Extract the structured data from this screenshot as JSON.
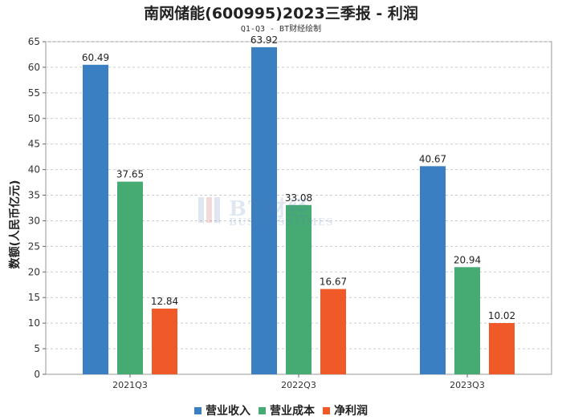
{
  "chart_data": {
    "type": "bar",
    "title": "南网储能(600995)2023三季报 - 利润",
    "subtitle": "Q1-Q3 - BT财经绘制",
    "xlabel": "",
    "ylabel": "数额(人民币亿元)",
    "ylim": [
      0,
      65
    ],
    "yticks": [
      0,
      5,
      10,
      15,
      20,
      25,
      30,
      35,
      40,
      45,
      50,
      55,
      60,
      65
    ],
    "grid": true,
    "categories": [
      "2021Q3",
      "2022Q3",
      "2023Q3"
    ],
    "series": [
      {
        "name": "营业收入",
        "color": "#3a7fc1",
        "values": [
          60.49,
          63.92,
          40.67
        ]
      },
      {
        "name": "营业成本",
        "color": "#46ab73",
        "values": [
          37.65,
          33.08,
          20.94
        ]
      },
      {
        "name": "净利润",
        "color": "#f05a28",
        "values": [
          12.84,
          16.67,
          10.02
        ]
      }
    ],
    "value_labels": [
      [
        "60.49",
        "63.92",
        "40.67"
      ],
      [
        "37.65",
        "33.08",
        "20.94"
      ],
      [
        "12.84",
        "16.67",
        "10.02"
      ]
    ],
    "legend_position": "bottom"
  },
  "watermark": {
    "text": "BT财经",
    "subtext": "BUSINESSTIMES"
  }
}
